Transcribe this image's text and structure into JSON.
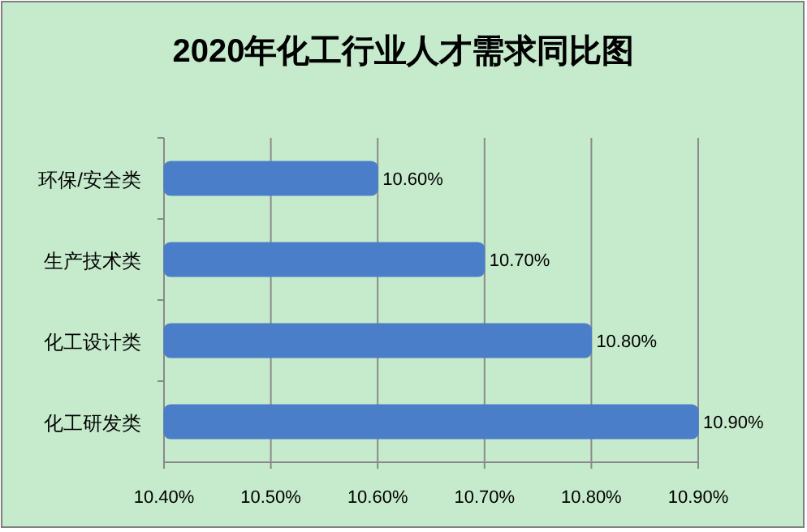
{
  "chart_data": {
    "type": "bar",
    "orientation": "horizontal",
    "title": "2020年化工行业人才需求同比图",
    "categories": [
      "环保/安全类",
      "生产技术类",
      "化工设计类",
      "化工研发类"
    ],
    "values": [
      10.6,
      10.7,
      10.8,
      10.9
    ],
    "value_labels": [
      "10.60%",
      "10.70%",
      "10.80%",
      "10.90%"
    ],
    "color": "#4a7ec8",
    "xlim": [
      10.4,
      10.9
    ],
    "xticks": [
      {
        "value": 10.4,
        "label": "10.40%"
      },
      {
        "value": 10.5,
        "label": "10.50%"
      },
      {
        "value": 10.6,
        "label": "10.60%"
      },
      {
        "value": 10.7,
        "label": "10.70%"
      },
      {
        "value": 10.8,
        "label": "10.80%"
      },
      {
        "value": 10.9,
        "label": "10.90%"
      }
    ],
    "grid": "x"
  }
}
